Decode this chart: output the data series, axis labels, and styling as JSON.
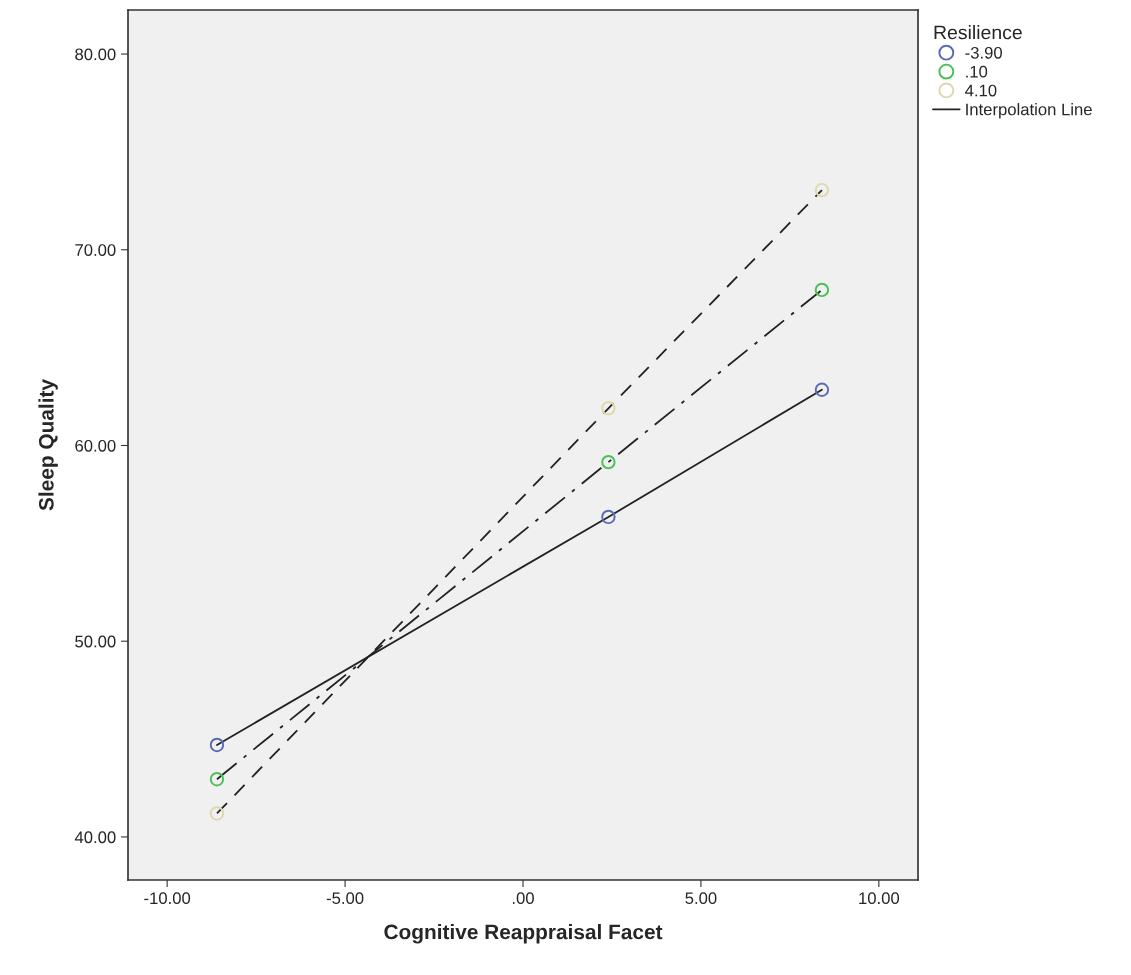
{
  "chart_data": {
    "type": "line",
    "xlabel": "Cognitive Reappraisal Facet",
    "ylabel": "Sleep Quality",
    "legend_title": "Resilience",
    "x": [
      -8.6,
      2.4,
      8.4
    ],
    "series": [
      {
        "name": "-3.90",
        "color": "#5a6bb5",
        "line_style": "solid",
        "values": [
          44.7,
          56.35,
          62.85
        ]
      },
      {
        "name": ".10",
        "color": "#4cbf5a",
        "line_style": "dashdot",
        "values": [
          42.95,
          59.15,
          67.95
        ]
      },
      {
        "name": "4.10",
        "color": "#ddd9ad",
        "line_style": "dashed",
        "values": [
          41.2,
          61.9,
          73.05
        ]
      }
    ],
    "annotations": [
      "Interpolation Line"
    ],
    "xlim": [
      -11.1,
      11.1
    ],
    "ylim": [
      37.8,
      82.25
    ],
    "xticks": [
      {
        "value": -10,
        "label": "-10.00"
      },
      {
        "value": -5,
        "label": "-5.00"
      },
      {
        "value": 0,
        "label": ".00"
      },
      {
        "value": 5,
        "label": "5.00"
      },
      {
        "value": 10,
        "label": "10.00"
      }
    ],
    "yticks": [
      {
        "value": 40,
        "label": "40.00"
      },
      {
        "value": 50,
        "label": "50.00"
      },
      {
        "value": 60,
        "label": "60.00"
      },
      {
        "value": 70,
        "label": "70.00"
      },
      {
        "value": 80,
        "label": "80.00"
      }
    ],
    "marker": "circle",
    "legend": "top right",
    "grid": false
  }
}
